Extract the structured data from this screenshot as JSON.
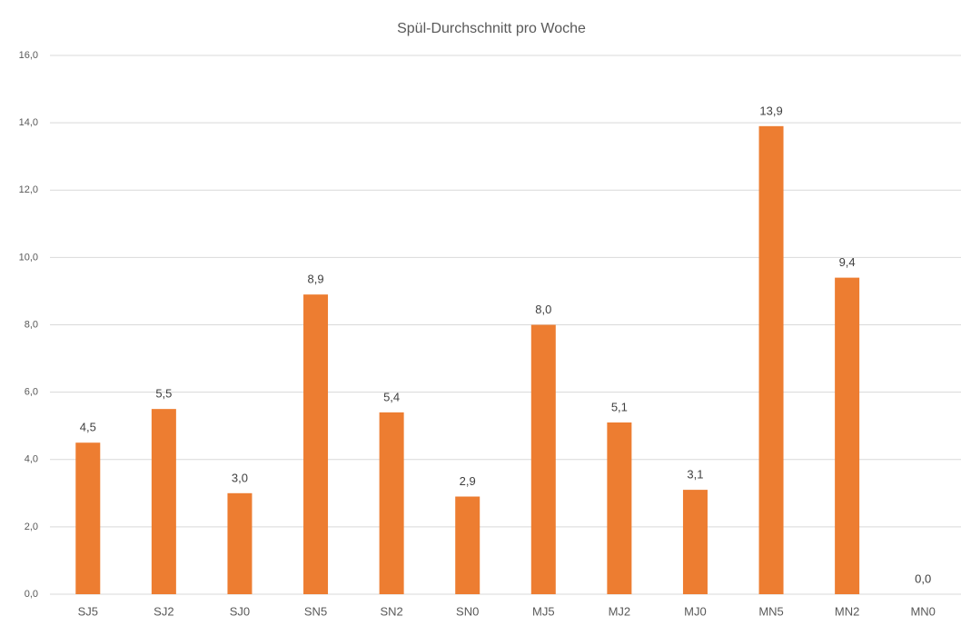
{
  "chart_data": {
    "type": "bar",
    "title": "Spül-Durchschnitt pro Woche",
    "categories": [
      "SJ5",
      "SJ2",
      "SJ0",
      "SN5",
      "SN2",
      "SN0",
      "MJ5",
      "MJ2",
      "MJ0",
      "MN5",
      "MN2",
      "MN0"
    ],
    "values": [
      4.5,
      5.5,
      3.0,
      8.9,
      5.4,
      2.9,
      8.0,
      5.1,
      3.1,
      13.9,
      9.4,
      0.0
    ],
    "value_labels": [
      "4,5",
      "5,5",
      "3,0",
      "8,9",
      "5,4",
      "2,9",
      "8,0",
      "5,1",
      "3,1",
      "13,9",
      "9,4",
      "0,0"
    ],
    "color": "#ed7d31",
    "ylim": [
      0,
      16
    ],
    "yticks": [
      {
        "value": 0,
        "label": "0,0"
      },
      {
        "value": 2,
        "label": "2,0"
      },
      {
        "value": 4,
        "label": "4,0"
      },
      {
        "value": 6,
        "label": "6,0"
      },
      {
        "value": 8,
        "label": "8,0"
      },
      {
        "value": 10,
        "label": "10,0"
      },
      {
        "value": 12,
        "label": "12,0"
      },
      {
        "value": 14,
        "label": "14,0"
      },
      {
        "value": 16,
        "label": "16,0"
      }
    ],
    "grid": true
  }
}
